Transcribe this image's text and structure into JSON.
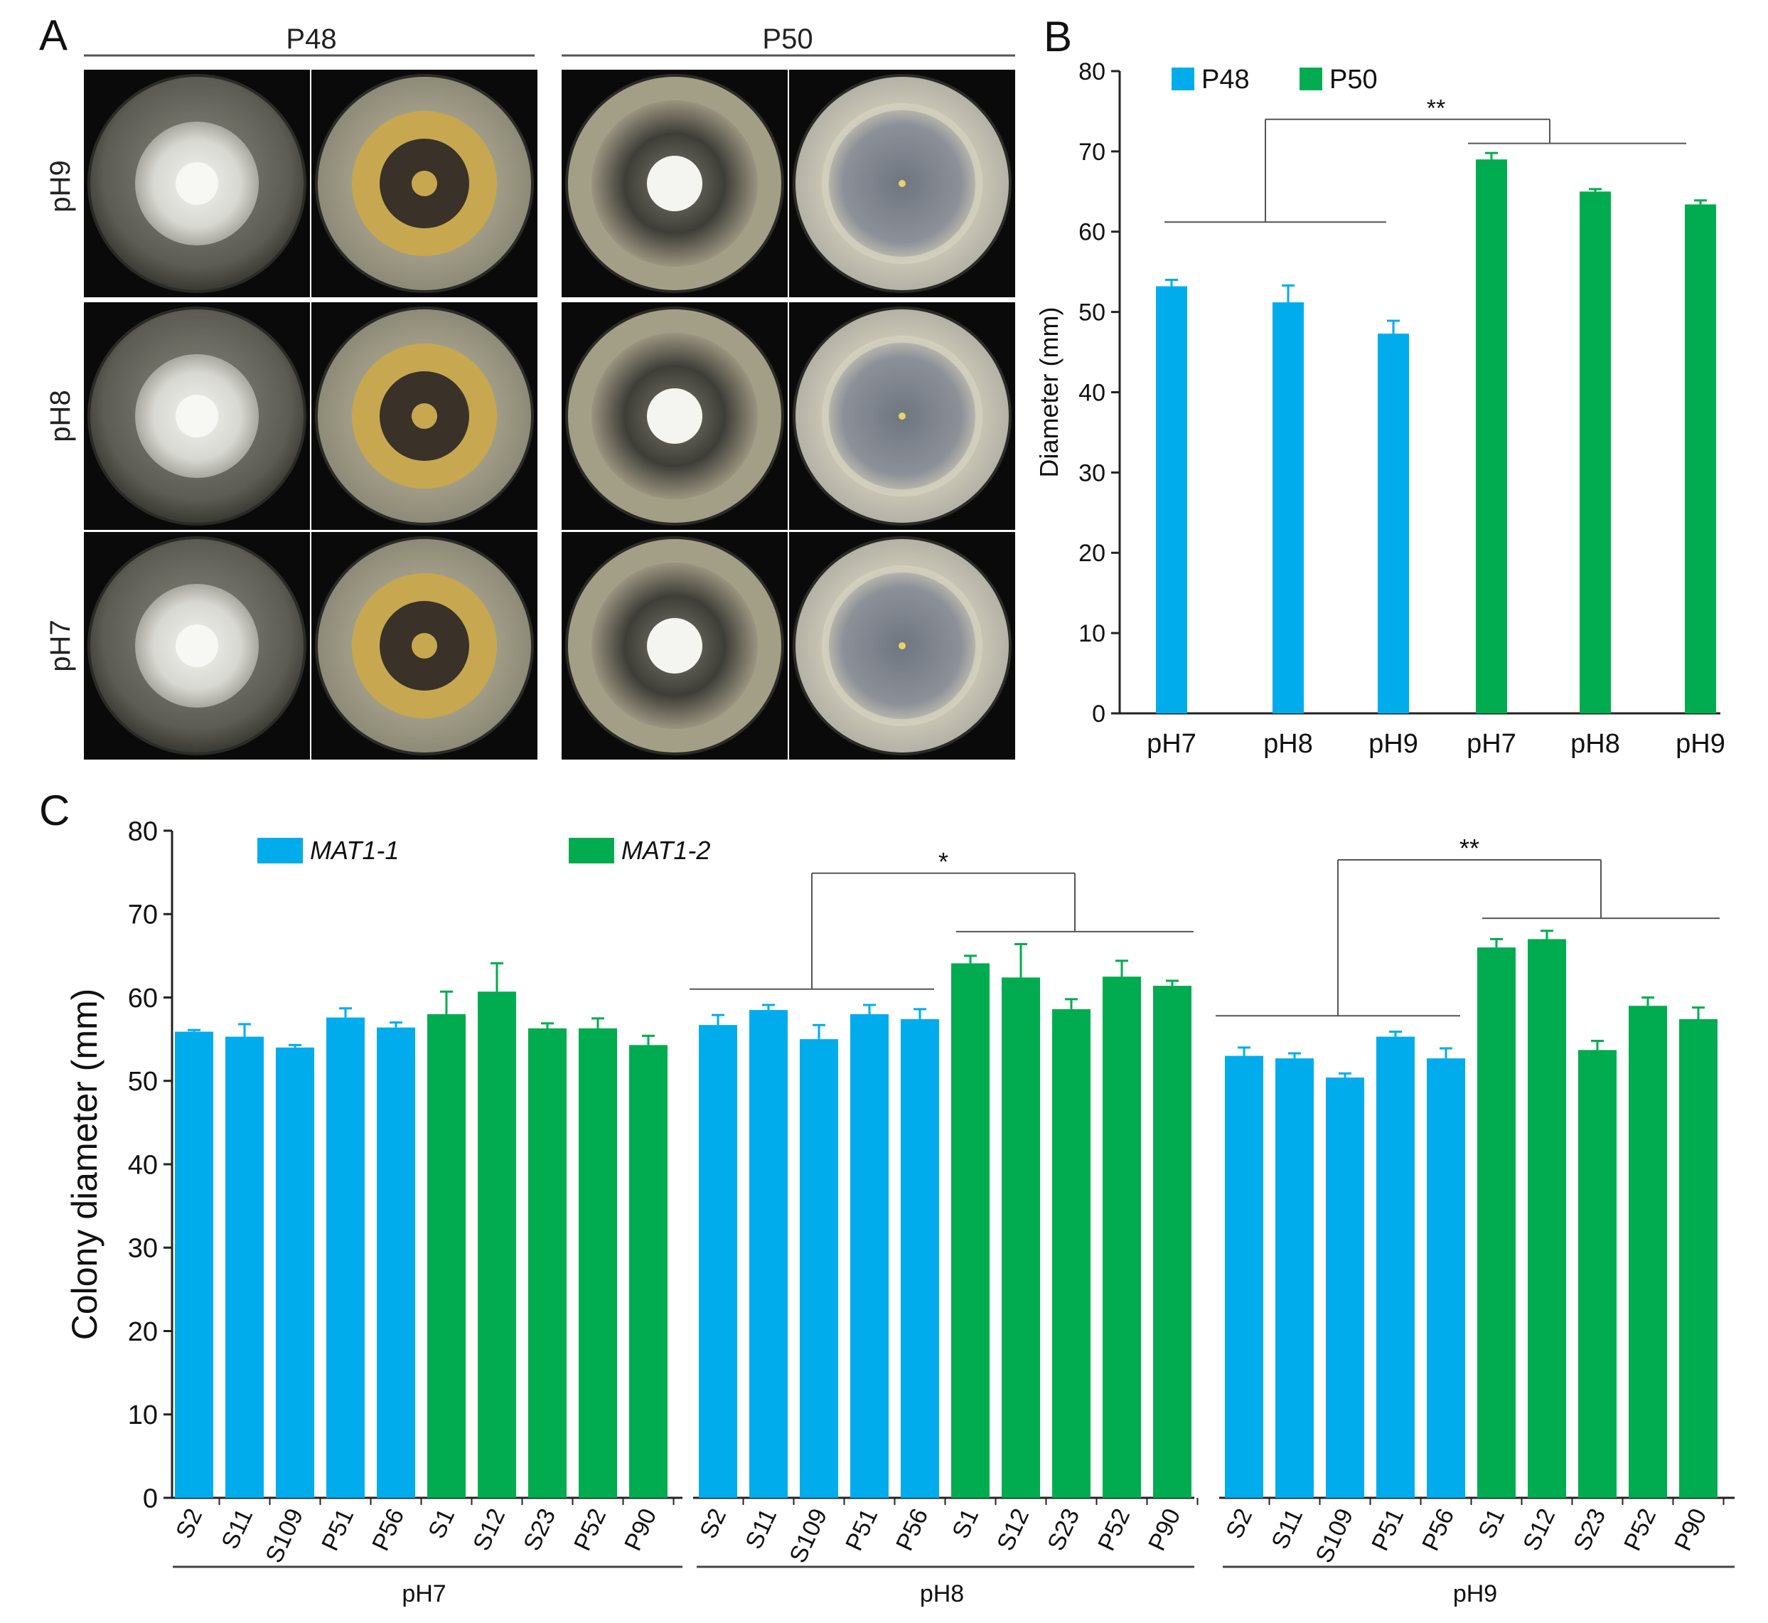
{
  "colors": {
    "blue": "#00ACEC",
    "green": "#00AC4F",
    "plate_background": "#0a0a0a"
  },
  "panel_a": {
    "letter": "A",
    "group_labels": [
      "P48",
      "P50"
    ],
    "row_labels": [
      "pH9",
      "pH8",
      "pH7"
    ],
    "plates": [
      [
        {
          "style": "white-colony"
        },
        {
          "style": "yellow-ring"
        },
        {
          "style": "grey-speckled"
        },
        {
          "style": "pale-rings"
        }
      ],
      [
        {
          "style": "white-colony"
        },
        {
          "style": "yellow-ring"
        },
        {
          "style": "grey-speckled"
        },
        {
          "style": "pale-rings"
        }
      ],
      [
        {
          "style": "white-colony"
        },
        {
          "style": "yellow-ring"
        },
        {
          "style": "grey-speckled"
        },
        {
          "style": "pale-rings"
        }
      ]
    ]
  },
  "chart_data": [
    {
      "type": "bar",
      "panel": "B",
      "title": "",
      "ylabel": "Diameter (mm)",
      "xlabel": "",
      "ylim": [
        0,
        80
      ],
      "yticks": [
        0,
        10,
        20,
        30,
        40,
        50,
        60,
        70,
        80
      ],
      "categories": [
        "pH7",
        "pH8",
        "pH9",
        "pH7",
        "pH8",
        "pH9"
      ],
      "values": [
        53.2,
        51.2,
        47.3,
        69.0,
        65.0,
        63.4
      ],
      "errors": [
        0.8,
        2.1,
        1.6,
        0.8,
        0.3,
        0.5
      ],
      "series_index": [
        0,
        0,
        0,
        1,
        1,
        1
      ],
      "legend": [
        {
          "name": "P48",
          "color": "#00ACEC"
        },
        {
          "name": "P50",
          "color": "#00AC4F"
        }
      ],
      "legend_position": "top-left",
      "grid": false,
      "annotations": [
        {
          "text": "**",
          "between": "P48 vs P50"
        }
      ]
    },
    {
      "type": "bar",
      "panel": "C",
      "title": "",
      "ylabel": "Colony diameter (mm)",
      "xlabel": "",
      "ylim": [
        0,
        80
      ],
      "yticks": [
        0,
        10,
        20,
        30,
        40,
        50,
        60,
        70,
        80
      ],
      "legend": [
        {
          "name": "MAT1-1",
          "color": "#00ACEC",
          "italic": true
        },
        {
          "name": "MAT1-2",
          "color": "#00AC4F",
          "italic": true
        }
      ],
      "legend_position": "top-left",
      "grid": false,
      "groups": [
        {
          "name": "pH7",
          "categories": [
            "S2",
            "S11",
            "S109",
            "P51",
            "P56",
            "S1",
            "S12",
            "S23",
            "P52",
            "P90"
          ],
          "values": [
            55.9,
            55.3,
            54.0,
            57.6,
            56.4,
            58.0,
            60.7,
            56.3,
            56.3,
            54.3
          ],
          "errors": [
            0.2,
            1.5,
            0.3,
            1.1,
            0.6,
            2.7,
            3.4,
            0.6,
            1.2,
            1.1
          ],
          "series_index": [
            0,
            0,
            0,
            0,
            0,
            1,
            1,
            1,
            1,
            1
          ],
          "significance": ""
        },
        {
          "name": "pH8",
          "categories": [
            "S2",
            "S11",
            "S109",
            "P51",
            "P56",
            "S1",
            "S12",
            "S23",
            "P52",
            "P90"
          ],
          "values": [
            56.7,
            58.5,
            55.0,
            58.0,
            57.4,
            64.1,
            62.4,
            58.6,
            62.5,
            61.4
          ],
          "errors": [
            1.2,
            0.6,
            1.7,
            1.1,
            1.2,
            0.9,
            4.0,
            1.2,
            1.9,
            0.6
          ],
          "series_index": [
            0,
            0,
            0,
            0,
            0,
            1,
            1,
            1,
            1,
            1
          ],
          "significance": "*"
        },
        {
          "name": "pH9",
          "categories": [
            "S2",
            "S11",
            "S109",
            "P51",
            "P56",
            "S1",
            "S12",
            "S23",
            "P52",
            "P90"
          ],
          "values": [
            53.0,
            52.7,
            50.4,
            55.3,
            52.7,
            66.0,
            67.0,
            53.7,
            59.0,
            57.4
          ],
          "errors": [
            1.0,
            0.6,
            0.5,
            0.6,
            1.2,
            1.0,
            1.0,
            1.1,
            1.0,
            1.4
          ],
          "series_index": [
            0,
            0,
            0,
            0,
            0,
            1,
            1,
            1,
            1,
            1
          ],
          "significance": "**"
        }
      ]
    }
  ]
}
